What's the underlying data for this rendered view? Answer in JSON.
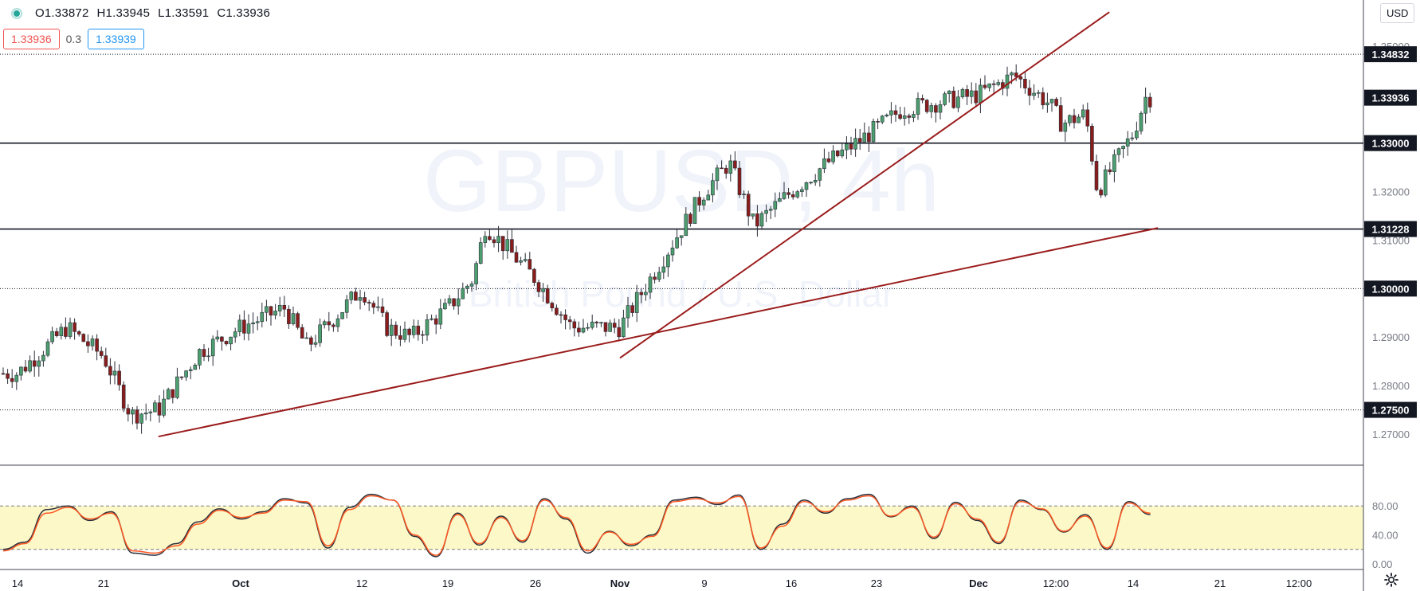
{
  "legend": {
    "status_icon": "green-dot-icon",
    "open": "O1.33872",
    "high": "H1.33945",
    "low": "L1.33591",
    "close": "C1.33936"
  },
  "quote": {
    "sell": "1.33936",
    "spread": "0.3",
    "buy": "1.33939"
  },
  "currency_label": "USD",
  "settings_icon": "gear-icon",
  "watermark": {
    "symbol": "GBPUSD, 4h",
    "description": "British Pound / U.S. Dollar"
  },
  "colors": {
    "up": "#26a69a",
    "down": "#ef5350",
    "candle_up_fill": "#4c9f6f",
    "candle_down_fill": "#8b1c1c",
    "trendline": "#9b1c1c",
    "stoch_k": "#2a2e39",
    "stoch_d": "#ff5722",
    "stoch_band": "#fdf8c8"
  },
  "chart_data": [
    {
      "type": "candlestick",
      "symbol": "GBPUSD",
      "interval": "4h",
      "ylim": [
        1.265,
        1.356
      ],
      "price_ticks": [
        "1.35000",
        "1.34000",
        "1.33000",
        "1.32000",
        "1.31000",
        "1.30000",
        "1.29000",
        "1.28000",
        "1.27000"
      ],
      "x_ticks": [
        "14",
        "21",
        "Oct",
        "12",
        "19",
        "26",
        "Nov",
        "9",
        "16",
        "23",
        "Dec",
        "12:00",
        "14",
        "21",
        "12:00"
      ],
      "highlighted_levels": [
        {
          "label": "1.34832",
          "value": 1.34832,
          "style": "dotted"
        },
        {
          "label": "1.33936",
          "value": 1.33936,
          "style": "none"
        },
        {
          "label": "1.33000",
          "value": 1.33,
          "style": "solid"
        },
        {
          "label": "1.31228",
          "value": 1.31228,
          "style": "solid"
        },
        {
          "label": "1.30000",
          "value": 1.3,
          "style": "dotted"
        },
        {
          "label": "1.27500",
          "value": 1.275,
          "style": "dotted"
        }
      ],
      "trendlines": [
        {
          "from": [
            "Sep 25",
            1.2695
          ],
          "to": [
            "Dec 16",
            1.3125
          ]
        },
        {
          "from": [
            "Nov 2",
            1.2857
          ],
          "to": [
            "Dec 12",
            1.357
          ]
        }
      ],
      "close_path_daily": [
        {
          "x": "Sep 14",
          "close": 1.2825
        },
        {
          "x": "Sep 18",
          "close": 1.292
        },
        {
          "x": "Sep 21",
          "close": 1.286
        },
        {
          "x": "Sep 23",
          "close": 1.274
        },
        {
          "x": "Sep 25",
          "close": 1.275
        },
        {
          "x": "Sep 28",
          "close": 1.287
        },
        {
          "x": "Oct 1",
          "close": 1.292
        },
        {
          "x": "Oct 5",
          "close": 1.296
        },
        {
          "x": "Oct 7",
          "close": 1.288
        },
        {
          "x": "Oct 12",
          "close": 1.3
        },
        {
          "x": "Oct 14",
          "close": 1.292
        },
        {
          "x": "Oct 16",
          "close": 1.29
        },
        {
          "x": "Oct 19",
          "close": 1.296
        },
        {
          "x": "Oct 21",
          "close": 1.302
        },
        {
          "x": "Oct 22",
          "close": 1.313
        },
        {
          "x": "Oct 26",
          "close": 1.302
        },
        {
          "x": "Oct 29",
          "close": 1.292
        },
        {
          "x": "Nov 2",
          "close": 1.292
        },
        {
          "x": "Nov 5",
          "close": 1.304
        },
        {
          "x": "Nov 9",
          "close": 1.32
        },
        {
          "x": "Nov 11",
          "close": 1.326
        },
        {
          "x": "Nov 13",
          "close": 1.313
        },
        {
          "x": "Nov 16",
          "close": 1.32
        },
        {
          "x": "Nov 19",
          "close": 1.326
        },
        {
          "x": "Nov 23",
          "close": 1.333
        },
        {
          "x": "Nov 25",
          "close": 1.337
        },
        {
          "x": "Dec 1",
          "close": 1.34
        },
        {
          "x": "Dec 4",
          "close": 1.344
        },
        {
          "x": "Dec 7",
          "close": 1.338
        },
        {
          "x": "Dec 8",
          "close": 1.334
        },
        {
          "x": "Dec 10",
          "close": 1.336
        },
        {
          "x": "Dec 11",
          "close": 1.32
        },
        {
          "x": "Dec 14",
          "close": 1.332
        },
        {
          "x": "Dec 15",
          "close": 1.3394
        }
      ]
    },
    {
      "type": "line",
      "indicator": "Stochastic",
      "ylim": [
        0,
        100
      ],
      "y_ticks": [
        "80.00",
        "40.00",
        "0.00"
      ],
      "band": [
        20,
        80
      ],
      "series": [
        {
          "values": [
            20,
            30,
            75,
            80,
            60,
            72,
            15,
            12,
            28,
            58,
            76,
            62,
            72,
            90,
            84,
            22,
            78,
            96,
            88,
            38,
            10,
            70,
            26,
            66,
            30,
            90,
            62,
            15,
            45,
            25,
            40,
            88,
            92,
            82,
            95,
            20,
            55,
            88,
            70,
            90,
            96,
            65,
            80,
            35,
            85,
            60,
            28,
            88,
            75,
            44,
            68,
            20,
            86,
            68
          ]
        },
        {
          "values": [
            18,
            28,
            70,
            78,
            62,
            70,
            18,
            15,
            25,
            55,
            74,
            64,
            70,
            88,
            86,
            25,
            75,
            94,
            88,
            40,
            12,
            68,
            28,
            64,
            32,
            88,
            64,
            18,
            44,
            27,
            38,
            86,
            90,
            84,
            93,
            22,
            52,
            86,
            72,
            88,
            94,
            66,
            78,
            37,
            83,
            62,
            30,
            86,
            76,
            45,
            66,
            22,
            84,
            70
          ]
        }
      ]
    }
  ]
}
